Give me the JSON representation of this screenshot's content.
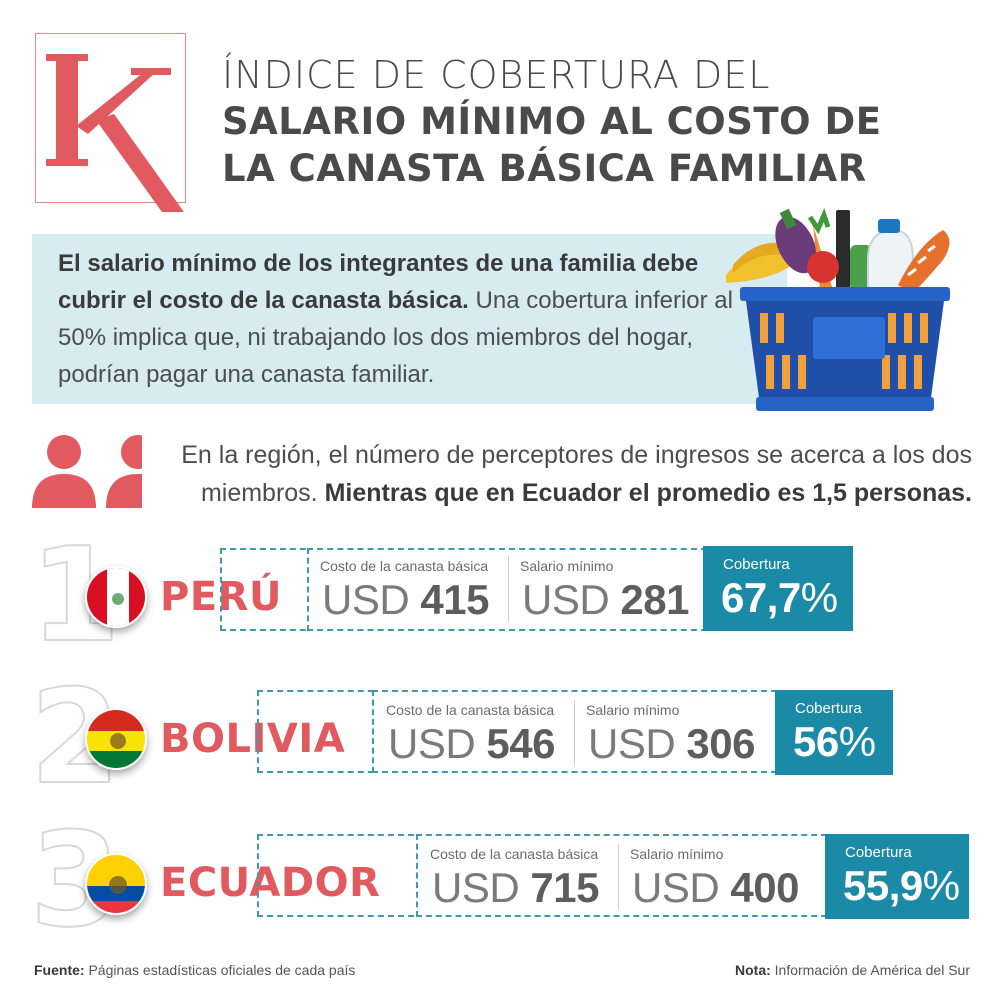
{
  "title": {
    "line1": "ÍNDICE DE COBERTURA DEL",
    "line2": "SALARIO MÍNIMO AL COSTO DE",
    "line3": "LA CANASTA BÁSICA FAMILIAR"
  },
  "intro": {
    "bold": "El salario mínimo de los integrantes de una familia debe cubrir el costo de la canasta básica.",
    "rest": " Una cobertura inferior al 50% implica que, ni trabajando los dos miembros del hogar, podrían pagar una canasta familiar."
  },
  "region": {
    "text": "En la región, el número de perceptores de ingresos se acerca a los dos miembros.",
    "bold": " Mientras que en Ecuador el promedio es 1,5 personas."
  },
  "labels": {
    "cost": "Costo de la canasta básica",
    "wage": "Salario mínimo",
    "coverage": "Cobertura",
    "currency": "USD",
    "percent": "%"
  },
  "countries": [
    {
      "rank": "1",
      "name": "PERÚ",
      "cost": "415",
      "wage": "281",
      "coverage": "67,7"
    },
    {
      "rank": "2",
      "name": "BOLIVIA",
      "cost": "546",
      "wage": "306",
      "coverage": "56"
    },
    {
      "rank": "3",
      "name": "ECUADOR",
      "cost": "715",
      "wage": "400",
      "coverage": "55,9"
    }
  ],
  "footer": {
    "source_label": "Fuente:",
    "source": " Páginas estadísticas oficiales de cada país",
    "note_label": "Nota:",
    "note": " Información de América del Sur"
  },
  "colors": {
    "accent_red": "#e15a5f",
    "accent_teal": "#1b8aa6",
    "band": "#d6ecf1"
  },
  "icons": [
    "k-logo-icon",
    "grocery-basket-icon",
    "people-icon",
    "peru-flag-icon",
    "bolivia-flag-icon",
    "ecuador-flag-icon"
  ]
}
